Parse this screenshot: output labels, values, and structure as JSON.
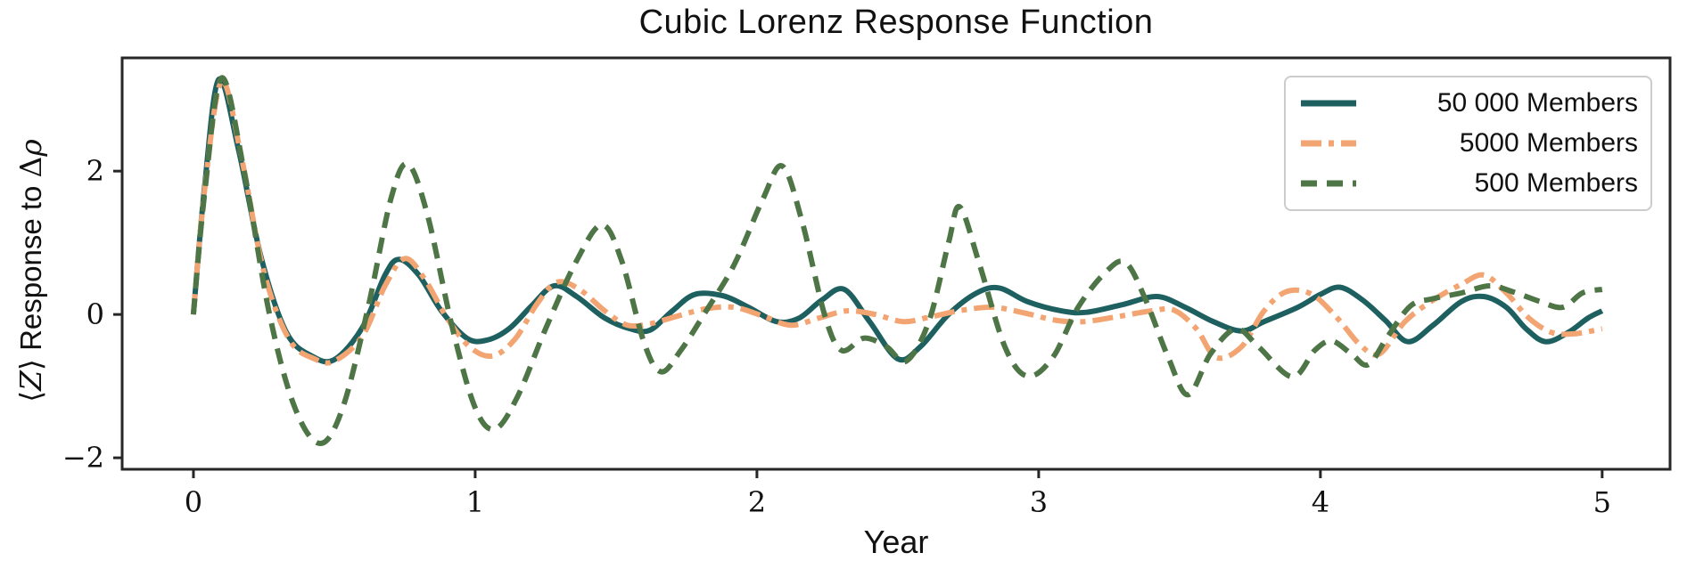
{
  "figure": {
    "title": "Cubic Lorenz Response Function",
    "xlabel": "Year",
    "ylabel": "⟨Z⟩ Response to Δρ",
    "ylabel_parts": {
      "open_angle": "⟨",
      "z": "Z",
      "close_angle": "⟩",
      "middle_text": " Response to ",
      "delta": "Δ",
      "rho": "ρ"
    },
    "background_color": "#ffffff",
    "axis_color": "#262626"
  },
  "chart_data": {
    "type": "line",
    "title": "Cubic Lorenz Response Function",
    "xlabel": "Year",
    "ylabel": "⟨Z⟩ Response to Δρ",
    "xlim": [
      -0.253,
      5.241
    ],
    "ylim": [
      -2.16,
      3.58
    ],
    "x_ticks": [
      0,
      1,
      2,
      3,
      4,
      5
    ],
    "y_ticks": [
      -2,
      0,
      2
    ],
    "grid": false,
    "legend_position": "upper right",
    "series": [
      {
        "name": "50 000 Members",
        "color": "#1e5f5f",
        "style": "solid",
        "width": 6,
        "points": [
          [
            0.0,
            0.0
          ],
          [
            0.04,
            1.8
          ],
          [
            0.09,
            3.28
          ],
          [
            0.16,
            2.3
          ],
          [
            0.24,
            0.8
          ],
          [
            0.33,
            -0.25
          ],
          [
            0.42,
            -0.58
          ],
          [
            0.5,
            -0.63
          ],
          [
            0.6,
            -0.18
          ],
          [
            0.68,
            0.55
          ],
          [
            0.73,
            0.77
          ],
          [
            0.8,
            0.55
          ],
          [
            0.88,
            0.05
          ],
          [
            0.97,
            -0.33
          ],
          [
            1.04,
            -0.36
          ],
          [
            1.12,
            -0.2
          ],
          [
            1.2,
            0.12
          ],
          [
            1.28,
            0.4
          ],
          [
            1.36,
            0.25
          ],
          [
            1.46,
            -0.05
          ],
          [
            1.55,
            -0.2
          ],
          [
            1.62,
            -0.22
          ],
          [
            1.7,
            0.05
          ],
          [
            1.78,
            0.28
          ],
          [
            1.88,
            0.26
          ],
          [
            1.97,
            0.1
          ],
          [
            2.07,
            -0.1
          ],
          [
            2.15,
            -0.05
          ],
          [
            2.23,
            0.2
          ],
          [
            2.31,
            0.35
          ],
          [
            2.4,
            -0.1
          ],
          [
            2.5,
            -0.62
          ],
          [
            2.58,
            -0.45
          ],
          [
            2.68,
            0.0
          ],
          [
            2.78,
            0.3
          ],
          [
            2.86,
            0.37
          ],
          [
            2.96,
            0.18
          ],
          [
            3.08,
            0.05
          ],
          [
            3.17,
            0.03
          ],
          [
            3.3,
            0.14
          ],
          [
            3.42,
            0.25
          ],
          [
            3.52,
            0.1
          ],
          [
            3.62,
            -0.1
          ],
          [
            3.72,
            -0.23
          ],
          [
            3.8,
            -0.1
          ],
          [
            3.92,
            0.1
          ],
          [
            4.0,
            0.28
          ],
          [
            4.07,
            0.38
          ],
          [
            4.15,
            0.2
          ],
          [
            4.23,
            -0.08
          ],
          [
            4.31,
            -0.38
          ],
          [
            4.4,
            -0.15
          ],
          [
            4.5,
            0.18
          ],
          [
            4.58,
            0.25
          ],
          [
            4.66,
            0.1
          ],
          [
            4.73,
            -0.2
          ],
          [
            4.8,
            -0.38
          ],
          [
            4.88,
            -0.25
          ],
          [
            4.95,
            -0.05
          ],
          [
            5.0,
            0.05
          ]
        ]
      },
      {
        "name": "5000 Members",
        "color": "#f2a572",
        "style": "dashdot",
        "width": 6,
        "points": [
          [
            0.0,
            0.0
          ],
          [
            0.04,
            1.75
          ],
          [
            0.1,
            3.25
          ],
          [
            0.17,
            2.2
          ],
          [
            0.25,
            0.6
          ],
          [
            0.34,
            -0.35
          ],
          [
            0.43,
            -0.62
          ],
          [
            0.5,
            -0.65
          ],
          [
            0.6,
            -0.3
          ],
          [
            0.68,
            0.4
          ],
          [
            0.75,
            0.78
          ],
          [
            0.82,
            0.5
          ],
          [
            0.9,
            -0.05
          ],
          [
            0.98,
            -0.45
          ],
          [
            1.06,
            -0.58
          ],
          [
            1.14,
            -0.35
          ],
          [
            1.22,
            0.15
          ],
          [
            1.29,
            0.45
          ],
          [
            1.37,
            0.35
          ],
          [
            1.46,
            0.05
          ],
          [
            1.54,
            -0.15
          ],
          [
            1.62,
            -0.13
          ],
          [
            1.72,
            -0.02
          ],
          [
            1.82,
            0.08
          ],
          [
            1.92,
            0.1
          ],
          [
            2.02,
            -0.02
          ],
          [
            2.12,
            -0.15
          ],
          [
            2.22,
            -0.05
          ],
          [
            2.32,
            0.05
          ],
          [
            2.42,
            0.0
          ],
          [
            2.52,
            -0.1
          ],
          [
            2.62,
            -0.03
          ],
          [
            2.73,
            0.06
          ],
          [
            2.84,
            0.1
          ],
          [
            2.95,
            0.02
          ],
          [
            3.06,
            -0.08
          ],
          [
            3.16,
            -0.1
          ],
          [
            3.28,
            -0.03
          ],
          [
            3.4,
            0.05
          ],
          [
            3.48,
            0.06
          ],
          [
            3.56,
            -0.2
          ],
          [
            3.63,
            -0.6
          ],
          [
            3.72,
            -0.45
          ],
          [
            3.8,
            0.05
          ],
          [
            3.88,
            0.32
          ],
          [
            3.97,
            0.28
          ],
          [
            4.06,
            -0.05
          ],
          [
            4.14,
            -0.42
          ],
          [
            4.21,
            -0.55
          ],
          [
            4.3,
            -0.1
          ],
          [
            4.4,
            0.2
          ],
          [
            4.5,
            0.42
          ],
          [
            4.58,
            0.55
          ],
          [
            4.66,
            0.3
          ],
          [
            4.74,
            -0.05
          ],
          [
            4.82,
            -0.25
          ],
          [
            4.9,
            -0.27
          ],
          [
            5.0,
            -0.2
          ]
        ]
      },
      {
        "name": "500 Members",
        "color": "#4e7546",
        "style": "dashed",
        "width": 6,
        "points": [
          [
            0.0,
            0.0
          ],
          [
            0.04,
            1.7
          ],
          [
            0.1,
            3.3
          ],
          [
            0.18,
            2.0
          ],
          [
            0.27,
            0.0
          ],
          [
            0.36,
            -1.3
          ],
          [
            0.45,
            -1.8
          ],
          [
            0.53,
            -1.3
          ],
          [
            0.62,
            0.1
          ],
          [
            0.7,
            1.6
          ],
          [
            0.76,
            2.1
          ],
          [
            0.83,
            1.4
          ],
          [
            0.92,
            -0.2
          ],
          [
            1.0,
            -1.3
          ],
          [
            1.07,
            -1.6
          ],
          [
            1.15,
            -1.15
          ],
          [
            1.25,
            -0.2
          ],
          [
            1.36,
            0.75
          ],
          [
            1.45,
            1.25
          ],
          [
            1.52,
            0.75
          ],
          [
            1.6,
            -0.4
          ],
          [
            1.66,
            -0.8
          ],
          [
            1.73,
            -0.5
          ],
          [
            1.82,
            0.05
          ],
          [
            1.92,
            0.7
          ],
          [
            2.02,
            1.6
          ],
          [
            2.09,
            2.07
          ],
          [
            2.16,
            1.3
          ],
          [
            2.24,
            0.0
          ],
          [
            2.3,
            -0.5
          ],
          [
            2.38,
            -0.33
          ],
          [
            2.46,
            -0.45
          ],
          [
            2.53,
            -0.65
          ],
          [
            2.61,
            -0.1
          ],
          [
            2.68,
            1.0
          ],
          [
            2.72,
            1.5
          ],
          [
            2.79,
            0.7
          ],
          [
            2.88,
            -0.45
          ],
          [
            2.96,
            -0.86
          ],
          [
            3.05,
            -0.6
          ],
          [
            3.14,
            0.1
          ],
          [
            3.24,
            0.6
          ],
          [
            3.31,
            0.72
          ],
          [
            3.38,
            0.2
          ],
          [
            3.46,
            -0.6
          ],
          [
            3.53,
            -1.12
          ],
          [
            3.61,
            -0.55
          ],
          [
            3.7,
            -0.2
          ],
          [
            3.78,
            -0.45
          ],
          [
            3.9,
            -0.87
          ],
          [
            3.98,
            -0.5
          ],
          [
            4.04,
            -0.37
          ],
          [
            4.11,
            -0.55
          ],
          [
            4.17,
            -0.7
          ],
          [
            4.24,
            -0.3
          ],
          [
            4.32,
            0.12
          ],
          [
            4.4,
            0.22
          ],
          [
            4.5,
            0.3
          ],
          [
            4.6,
            0.4
          ],
          [
            4.68,
            0.32
          ],
          [
            4.78,
            0.18
          ],
          [
            4.86,
            0.1
          ],
          [
            4.93,
            0.3
          ],
          [
            5.0,
            0.35
          ]
        ]
      }
    ]
  }
}
